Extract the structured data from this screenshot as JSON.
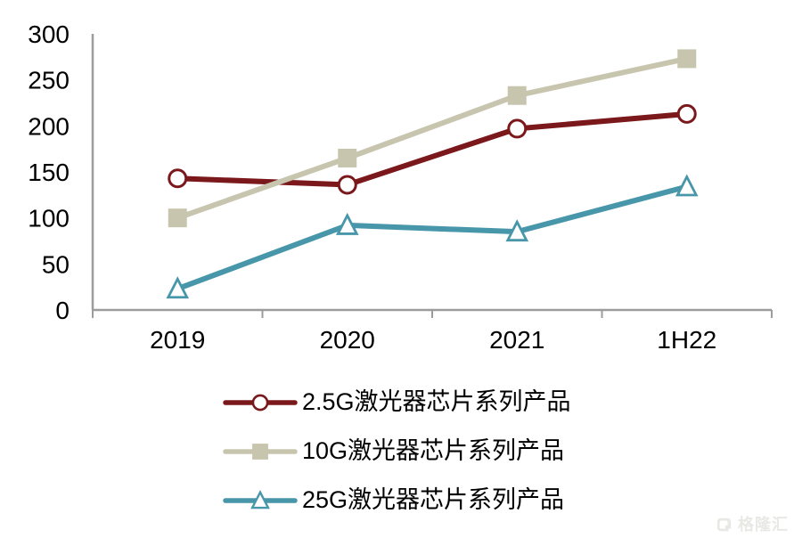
{
  "chart_data": {
    "type": "line",
    "title": "",
    "xlabel": "",
    "ylabel": "",
    "categories": [
      "2019",
      "2020",
      "2021",
      "1H22"
    ],
    "series": [
      {
        "name": "2.5G激光器芯片系列产品",
        "marker": "circle",
        "color": "#7A181B",
        "marker_fill": "#ffffff",
        "values": [
          143,
          136,
          197,
          213
        ]
      },
      {
        "name": "10G激光器芯片系列产品",
        "marker": "square",
        "color": "#C8C5AE",
        "marker_fill": "#C8C5AE",
        "values": [
          100,
          165,
          233,
          273
        ]
      },
      {
        "name": "25G激光器芯片系列产品",
        "marker": "triangle",
        "color": "#4796A9",
        "marker_fill": "#ffffff",
        "values": [
          23,
          92,
          85,
          134
        ]
      }
    ],
    "ylim": [
      0,
      300
    ],
    "yticks": [
      0,
      50,
      100,
      150,
      200,
      250,
      300
    ],
    "grid": false,
    "legend_position": "bottom",
    "axis_color": "#9C9C9C",
    "text_color": "#000000",
    "background": "#ffffff"
  },
  "watermark": {
    "text": "格隆汇",
    "icon": "gelonghui-logo"
  }
}
